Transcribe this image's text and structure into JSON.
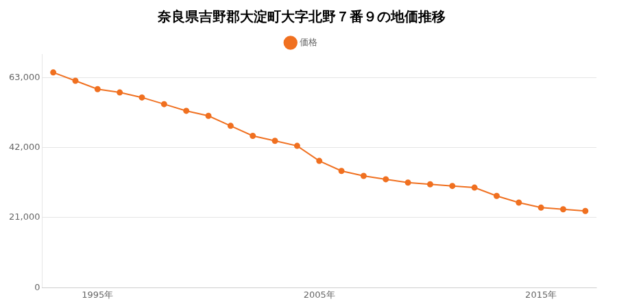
{
  "chart_data": {
    "type": "line",
    "title": "奈良県吉野郡大淀町大字北野７番９の地価推移",
    "x": [
      1993,
      1994,
      1995,
      1996,
      1997,
      1998,
      1999,
      2000,
      2001,
      2002,
      2003,
      2004,
      2005,
      2006,
      2007,
      2008,
      2009,
      2010,
      2011,
      2012,
      2013,
      2014,
      2015,
      2016,
      2017
    ],
    "series": [
      {
        "name": "価格",
        "color": "#f07020",
        "marker": "circle",
        "values": [
          64500,
          62000,
          59500,
          58500,
          57000,
          55000,
          53000,
          51500,
          48500,
          45500,
          44000,
          42500,
          38000,
          35000,
          33500,
          32500,
          31500,
          31000,
          30500,
          30000,
          27500,
          25500,
          24000,
          23500,
          23000
        ]
      }
    ],
    "xlim": [
      1992.5,
      2017.5
    ],
    "xticks": [
      {
        "value": 1995,
        "label": "1995年"
      },
      {
        "value": 2005,
        "label": "2005年"
      },
      {
        "value": 2015,
        "label": "2015年"
      }
    ],
    "ylim": [
      0,
      70000
    ],
    "yticks": [
      0,
      {
        "value": 21000,
        "label": "21,000"
      },
      {
        "value": 42000,
        "label": "42,000"
      },
      {
        "value": 63000,
        "label": "63,000"
      }
    ],
    "grid": "y",
    "legend": "top"
  }
}
